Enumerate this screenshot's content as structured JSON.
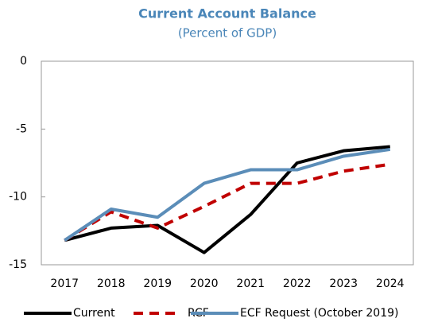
{
  "chart_data": {
    "type": "line",
    "title": "Current Account Balance",
    "subtitle": "(Percent of GDP)",
    "categories": [
      "2017",
      "2018",
      "2019",
      "2020",
      "2021",
      "2022",
      "2023",
      "2024"
    ],
    "series": [
      {
        "name": "Current",
        "color": "#000000",
        "dash": false,
        "values": [
          -13.2,
          -12.3,
          -12.1,
          -14.1,
          -11.3,
          -7.5,
          -6.6,
          -6.3
        ]
      },
      {
        "name": "RCF",
        "color": "#c00000",
        "dash": true,
        "values": [
          -13.2,
          -11.1,
          -12.3,
          -10.7,
          -9.0,
          -9.0,
          -8.1,
          -7.6
        ]
      },
      {
        "name": "ECF Request (October 2019)",
        "color": "#5b8db8",
        "dash": false,
        "values": [
          -13.2,
          -10.9,
          -11.5,
          -9.0,
          -8.0,
          -8.0,
          -7.0,
          -6.5
        ]
      }
    ],
    "ylim": [
      -15,
      0
    ],
    "yticks": [
      0,
      -5,
      -10,
      -15
    ],
    "grid": false,
    "legend": "bottom"
  }
}
